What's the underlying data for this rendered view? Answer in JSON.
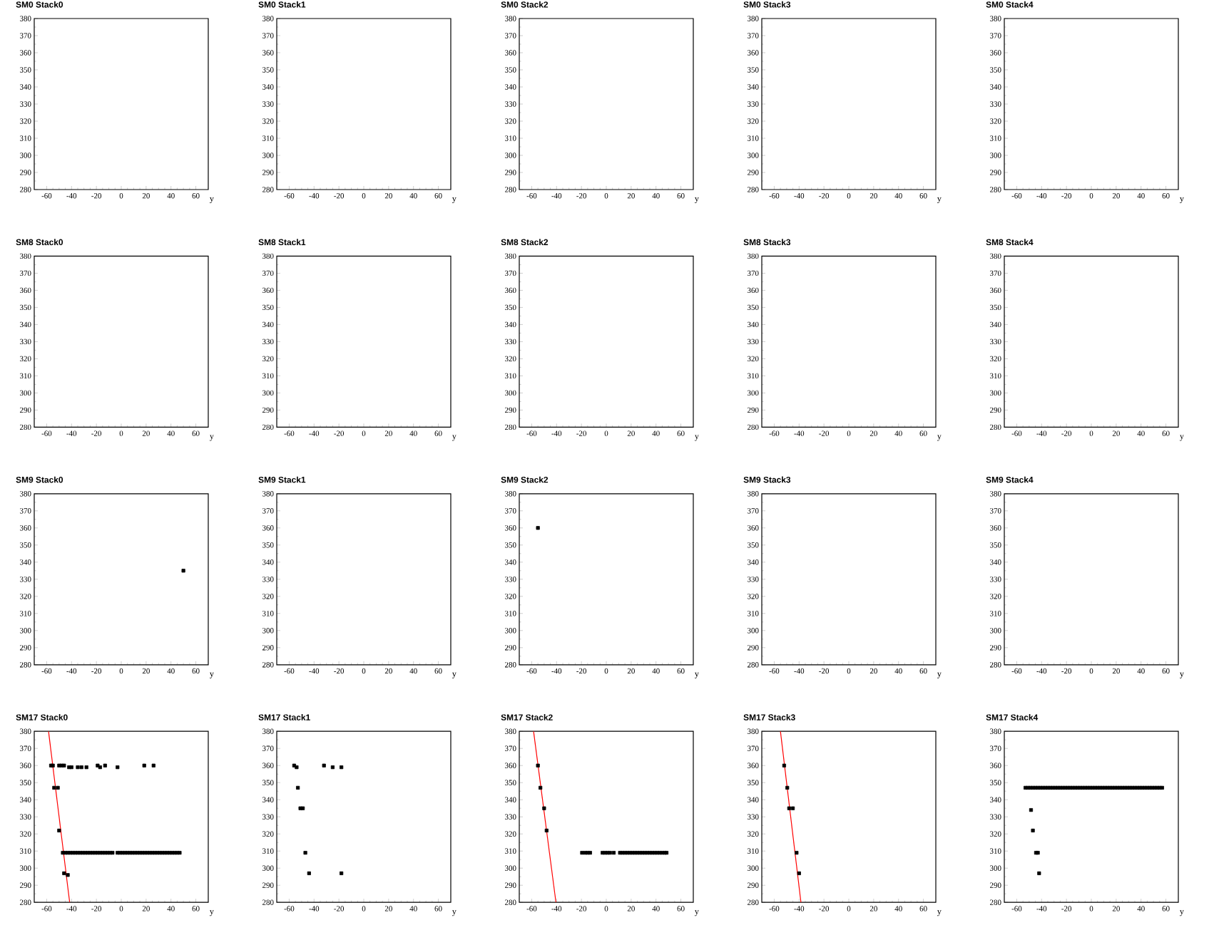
{
  "chart_data": [
    {
      "type": "scatter",
      "title": "SM0 Stack0",
      "xlabel": "y",
      "xlim": [
        -70,
        70
      ],
      "ylim": [
        280,
        380
      ],
      "xticks": [
        -60,
        -40,
        -20,
        0,
        20,
        40,
        60
      ],
      "yticks": [
        280,
        290,
        300,
        310,
        320,
        330,
        340,
        350,
        360,
        370,
        380
      ]
    },
    {
      "type": "scatter",
      "title": "SM0 Stack1",
      "xlabel": "y",
      "xlim": [
        -70,
        70
      ],
      "ylim": [
        280,
        380
      ],
      "xticks": [
        -60,
        -40,
        -20,
        0,
        20,
        40,
        60
      ],
      "yticks": [
        280,
        290,
        300,
        310,
        320,
        330,
        340,
        350,
        360,
        370,
        380
      ]
    },
    {
      "type": "scatter",
      "title": "SM0 Stack2",
      "xlabel": "y",
      "xlim": [
        -70,
        70
      ],
      "ylim": [
        280,
        380
      ],
      "xticks": [
        -60,
        -40,
        -20,
        0,
        20,
        40,
        60
      ],
      "yticks": [
        280,
        290,
        300,
        310,
        320,
        330,
        340,
        350,
        360,
        370,
        380
      ]
    },
    {
      "type": "scatter",
      "title": "SM0 Stack3",
      "xlabel": "y",
      "xlim": [
        -70,
        70
      ],
      "ylim": [
        280,
        380
      ],
      "xticks": [
        -60,
        -40,
        -20,
        0,
        20,
        40,
        60
      ],
      "yticks": [
        280,
        290,
        300,
        310,
        320,
        330,
        340,
        350,
        360,
        370,
        380
      ]
    },
    {
      "type": "scatter",
      "title": "SM0 Stack4",
      "xlabel": "y",
      "xlim": [
        -70,
        70
      ],
      "ylim": [
        280,
        380
      ],
      "xticks": [
        -60,
        -40,
        -20,
        0,
        20,
        40,
        60
      ],
      "yticks": [
        280,
        290,
        300,
        310,
        320,
        330,
        340,
        350,
        360,
        370,
        380
      ]
    },
    {
      "type": "scatter",
      "title": "SM8 Stack0",
      "xlabel": "y",
      "xlim": [
        -70,
        70
      ],
      "ylim": [
        280,
        380
      ],
      "xticks": [
        -60,
        -40,
        -20,
        0,
        20,
        40,
        60
      ],
      "yticks": [
        280,
        290,
        300,
        310,
        320,
        330,
        340,
        350,
        360,
        370,
        380
      ]
    },
    {
      "type": "scatter",
      "title": "SM8 Stack1",
      "xlabel": "y",
      "xlim": [
        -70,
        70
      ],
      "ylim": [
        280,
        380
      ],
      "xticks": [
        -60,
        -40,
        -20,
        0,
        20,
        40,
        60
      ],
      "yticks": [
        280,
        290,
        300,
        310,
        320,
        330,
        340,
        350,
        360,
        370,
        380
      ]
    },
    {
      "type": "scatter",
      "title": "SM8 Stack2",
      "xlabel": "y",
      "xlim": [
        -70,
        70
      ],
      "ylim": [
        280,
        380
      ],
      "xticks": [
        -60,
        -40,
        -20,
        0,
        20,
        40,
        60
      ],
      "yticks": [
        280,
        290,
        300,
        310,
        320,
        330,
        340,
        350,
        360,
        370,
        380
      ]
    },
    {
      "type": "scatter",
      "title": "SM8 Stack3",
      "xlabel": "y",
      "xlim": [
        -70,
        70
      ],
      "ylim": [
        280,
        380
      ],
      "xticks": [
        -60,
        -40,
        -20,
        0,
        20,
        40,
        60
      ],
      "yticks": [
        280,
        290,
        300,
        310,
        320,
        330,
        340,
        350,
        360,
        370,
        380
      ]
    },
    {
      "type": "scatter",
      "title": "SM8 Stack4",
      "xlabel": "y",
      "xlim": [
        -70,
        70
      ],
      "ylim": [
        280,
        380
      ],
      "xticks": [
        -60,
        -40,
        -20,
        0,
        20,
        40,
        60
      ],
      "yticks": [
        280,
        290,
        300,
        310,
        320,
        330,
        340,
        350,
        360,
        370,
        380
      ]
    },
    {
      "type": "scatter",
      "title": "SM9 Stack0",
      "xlabel": "y",
      "xlim": [
        -70,
        70
      ],
      "ylim": [
        280,
        380
      ],
      "xticks": [
        -60,
        -40,
        -20,
        0,
        20,
        40,
        60
      ],
      "yticks": [
        280,
        290,
        300,
        310,
        320,
        330,
        340,
        350,
        360,
        370,
        380
      ],
      "marker": "square",
      "series": [
        {
          "color": "#000000",
          "x": [
            50
          ],
          "values": [
            335
          ]
        }
      ]
    },
    {
      "type": "scatter",
      "title": "SM9 Stack1",
      "xlabel": "y",
      "xlim": [
        -70,
        70
      ],
      "ylim": [
        280,
        380
      ],
      "xticks": [
        -60,
        -40,
        -20,
        0,
        20,
        40,
        60
      ],
      "yticks": [
        280,
        290,
        300,
        310,
        320,
        330,
        340,
        350,
        360,
        370,
        380
      ]
    },
    {
      "type": "scatter",
      "title": "SM9 Stack2",
      "xlabel": "y",
      "xlim": [
        -70,
        70
      ],
      "ylim": [
        280,
        380
      ],
      "xticks": [
        -60,
        -40,
        -20,
        0,
        20,
        40,
        60
      ],
      "yticks": [
        280,
        290,
        300,
        310,
        320,
        330,
        340,
        350,
        360,
        370,
        380
      ],
      "marker": "square",
      "series": [
        {
          "color": "#000000",
          "x": [
            -55
          ],
          "values": [
            360
          ]
        }
      ]
    },
    {
      "type": "scatter",
      "title": "SM9 Stack3",
      "xlabel": "y",
      "xlim": [
        -70,
        70
      ],
      "ylim": [
        280,
        380
      ],
      "xticks": [
        -60,
        -40,
        -20,
        0,
        20,
        40,
        60
      ],
      "yticks": [
        280,
        290,
        300,
        310,
        320,
        330,
        340,
        350,
        360,
        370,
        380
      ]
    },
    {
      "type": "scatter",
      "title": "SM9 Stack4",
      "xlabel": "y",
      "xlim": [
        -70,
        70
      ],
      "ylim": [
        280,
        380
      ],
      "xticks": [
        -60,
        -40,
        -20,
        0,
        20,
        40,
        60
      ],
      "yticks": [
        280,
        290,
        300,
        310,
        320,
        330,
        340,
        350,
        360,
        370,
        380
      ]
    },
    {
      "type": "scatter",
      "title": "SM17 Stack0",
      "xlabel": "y",
      "xlim": [
        -70,
        70
      ],
      "ylim": [
        280,
        380
      ],
      "xticks": [
        -60,
        -40,
        -20,
        0,
        20,
        40,
        60
      ],
      "yticks": [
        280,
        290,
        300,
        310,
        320,
        330,
        340,
        350,
        360,
        370,
        380
      ],
      "series": [
        {
          "color": "#000000",
          "marker": "square",
          "x": [
            -56.5,
            -55,
            -50,
            -48,
            -46,
            -42,
            -40,
            -35,
            -32,
            -28,
            -19,
            -17,
            -13,
            -3,
            18.5,
            26,
            -54,
            -51,
            -50,
            -46,
            -43,
            -47,
            -45,
            -43,
            -41,
            -39,
            -37,
            -35,
            -33,
            -31,
            -29,
            -27,
            -25,
            -23,
            -21,
            -19,
            -17,
            -15,
            -13,
            -11,
            -9,
            -7,
            -3,
            -1,
            1,
            3,
            5,
            7,
            9,
            11,
            13,
            15,
            17,
            19,
            21,
            23,
            25,
            27,
            29,
            31,
            33,
            35,
            37,
            39,
            41,
            43,
            45,
            47
          ],
          "values": [
            360,
            360,
            360,
            360,
            360,
            359,
            359,
            359,
            359,
            359,
            360,
            359,
            360,
            359,
            360,
            360,
            347,
            347,
            322,
            297,
            296,
            309,
            309,
            309,
            309,
            309,
            309,
            309,
            309,
            309,
            309,
            309,
            309,
            309,
            309,
            309,
            309,
            309,
            309,
            309,
            309,
            309,
            309,
            309,
            309,
            309,
            309,
            309,
            309,
            309,
            309,
            309,
            309,
            309,
            309,
            309,
            309,
            309,
            309,
            309,
            309,
            309,
            309,
            309,
            309,
            309,
            309,
            309
          ]
        },
        {
          "type": "line",
          "color": "#ff0000",
          "x": [
            -58.5,
            -41.5
          ],
          "values": [
            380,
            280
          ]
        }
      ]
    },
    {
      "type": "scatter",
      "title": "SM17 Stack1",
      "xlabel": "y",
      "xlim": [
        -70,
        70
      ],
      "ylim": [
        280,
        380
      ],
      "xticks": [
        -60,
        -40,
        -20,
        0,
        20,
        40,
        60
      ],
      "yticks": [
        280,
        290,
        300,
        310,
        320,
        330,
        340,
        350,
        360,
        370,
        380
      ],
      "marker": "square",
      "series": [
        {
          "color": "#000000",
          "x": [
            -56,
            -54,
            -53,
            -51,
            -49,
            -47,
            -44,
            -32,
            -25,
            -18,
            -18
          ],
          "values": [
            360,
            359,
            347,
            335,
            335,
            309,
            297,
            360,
            359,
            359,
            297
          ]
        }
      ]
    },
    {
      "type": "scatter",
      "title": "SM17 Stack2",
      "xlabel": "y",
      "xlim": [
        -70,
        70
      ],
      "ylim": [
        280,
        380
      ],
      "xticks": [
        -60,
        -40,
        -20,
        0,
        20,
        40,
        60
      ],
      "yticks": [
        280,
        290,
        300,
        310,
        320,
        330,
        340,
        350,
        360,
        370,
        380
      ],
      "series": [
        {
          "color": "#000000",
          "marker": "square",
          "x": [
            -55,
            -53,
            -50,
            -48,
            -19.5,
            -17,
            -15,
            -13,
            -3,
            -1,
            1,
            3,
            6,
            11,
            13,
            15,
            17,
            19,
            21,
            23,
            25,
            27,
            29,
            31,
            33,
            35,
            37,
            39,
            41,
            43,
            45,
            47,
            48.5
          ],
          "values": [
            360,
            347,
            335,
            322,
            309,
            309,
            309,
            309,
            309,
            309,
            309,
            309,
            309,
            309,
            309,
            309,
            309,
            309,
            309,
            309,
            309,
            309,
            309,
            309,
            309,
            309,
            309,
            309,
            309,
            309,
            309,
            309,
            309
          ]
        },
        {
          "type": "line",
          "color": "#ff0000",
          "x": [
            -58.5,
            -40.5
          ],
          "values": [
            380,
            280
          ]
        }
      ]
    },
    {
      "type": "scatter",
      "title": "SM17 Stack3",
      "xlabel": "y",
      "xlim": [
        -70,
        70
      ],
      "ylim": [
        280,
        380
      ],
      "xticks": [
        -60,
        -40,
        -20,
        0,
        20,
        40,
        60
      ],
      "yticks": [
        280,
        290,
        300,
        310,
        320,
        330,
        340,
        350,
        360,
        370,
        380
      ],
      "series": [
        {
          "color": "#000000",
          "marker": "square",
          "x": [
            -52,
            -49.5,
            -48,
            -45,
            -42,
            -40
          ],
          "values": [
            360,
            347,
            335,
            335,
            309,
            297
          ]
        },
        {
          "type": "line",
          "color": "#ff0000",
          "x": [
            -55,
            -38.5
          ],
          "values": [
            380,
            280
          ]
        }
      ]
    },
    {
      "type": "scatter",
      "title": "SM17 Stack4",
      "xlabel": "y",
      "xlim": [
        -70,
        70
      ],
      "ylim": [
        280,
        380
      ],
      "xticks": [
        -60,
        -40,
        -20,
        0,
        20,
        40,
        60
      ],
      "yticks": [
        280,
        290,
        300,
        310,
        320,
        330,
        340,
        350,
        360,
        370,
        380
      ],
      "marker": "square",
      "series": [
        {
          "color": "#000000",
          "x": [
            -48.5,
            -47,
            -44.5,
            -43,
            -42,
            -53,
            -51,
            -49,
            -47,
            -45,
            -43,
            -41,
            -39,
            -37,
            -35,
            -33,
            -31,
            -29,
            -27,
            -25,
            -23,
            -21,
            -19,
            -17,
            -15,
            -13,
            -11,
            -9,
            -7,
            -5,
            -3,
            -1,
            1,
            3,
            5,
            7,
            9,
            11,
            13,
            15,
            17,
            19,
            21,
            23,
            25,
            27,
            29,
            31,
            33,
            35,
            37,
            39,
            41,
            43,
            45,
            47,
            49,
            51,
            53,
            55,
            57
          ],
          "values": [
            334,
            322,
            309,
            309,
            297,
            347,
            347,
            347,
            347,
            347,
            347,
            347,
            347,
            347,
            347,
            347,
            347,
            347,
            347,
            347,
            347,
            347,
            347,
            347,
            347,
            347,
            347,
            347,
            347,
            347,
            347,
            347,
            347,
            347,
            347,
            347,
            347,
            347,
            347,
            347,
            347,
            347,
            347,
            347,
            347,
            347,
            347,
            347,
            347,
            347,
            347,
            347,
            347,
            347,
            347,
            347,
            347,
            347,
            347,
            347,
            347
          ]
        }
      ]
    }
  ]
}
